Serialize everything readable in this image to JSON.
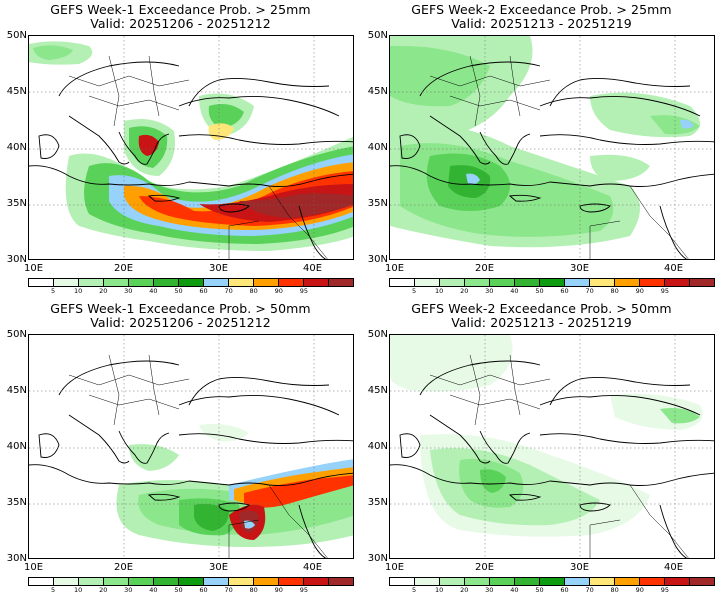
{
  "panels": [
    {
      "title": "GEFS Week-1 Exceedance Prob. > 25mm",
      "valid": "Valid: 20251206 - 20251212",
      "threshold_mm": 25,
      "week": 1,
      "max_probability_percent": 95,
      "high_probability_regions": [
        "eastern Mediterranean Sea",
        "Cyprus",
        "Levant coast",
        "southern Turkey coast",
        "northern Greece"
      ]
    },
    {
      "title": "GEFS Week-2 Exceedance Prob. > 25mm",
      "valid": "Valid: 20251213 - 20251219",
      "threshold_mm": 25,
      "week": 2,
      "max_probability_percent": 60,
      "high_probability_regions": [
        "central Mediterranean Sea",
        "Ionian Sea",
        "eastern Black Sea coast"
      ]
    },
    {
      "title": "GEFS Week-1 Exceedance Prob. > 50mm",
      "valid": "Valid: 20251206 - 20251212",
      "threshold_mm": 50,
      "week": 1,
      "max_probability_percent": 95,
      "high_probability_regions": [
        "Cyprus",
        "Levant coast",
        "southern Turkey coast"
      ]
    },
    {
      "title": "GEFS Week-2 Exceedance Prob. > 50mm",
      "valid": "Valid: 20251213 - 20251219",
      "threshold_mm": 50,
      "week": 2,
      "max_probability_percent": 30,
      "high_probability_regions": [
        "Ionian Sea",
        "eastern Black Sea coast"
      ]
    }
  ],
  "axes": {
    "lat_labels": [
      "50N",
      "45N",
      "40N",
      "35N",
      "30N"
    ],
    "lon_labels": [
      "10E",
      "20E",
      "30E",
      "40E"
    ]
  },
  "colorbar": {
    "ticks": [
      "5",
      "10",
      "20",
      "30",
      "40",
      "50",
      "60",
      "70",
      "80",
      "90",
      "95"
    ],
    "colors": [
      "#ffffff",
      "#e6fae6",
      "#b4f0b4",
      "#8ce68c",
      "#5ad25a",
      "#32b432",
      "#0f9b0f",
      "#96d2fa",
      "#ffe678",
      "#ffa000",
      "#ff3200",
      "#c81414",
      "#a02828"
    ]
  }
}
